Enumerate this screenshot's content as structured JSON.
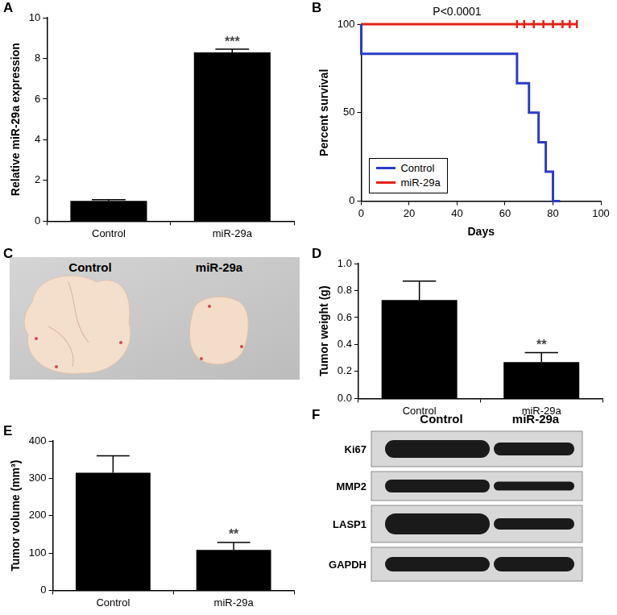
{
  "chart_data": [
    {
      "panel": "A",
      "type": "bar",
      "categories": [
        "Control",
        "miR-29a"
      ],
      "values": [
        1.0,
        8.3
      ],
      "errors": [
        0.06,
        0.15
      ],
      "ylabel": "Relative miR-29a expression",
      "ylim": [
        0,
        10
      ],
      "yticks": [
        0,
        2,
        4,
        6,
        8,
        10
      ],
      "annotations": [
        {
          "category": "miR-29a",
          "text": "***"
        }
      ],
      "color": "#000000",
      "grid": false
    },
    {
      "panel": "B",
      "type": "line",
      "xlabel": "Days",
      "ylabel": "Percent survival",
      "xlim": [
        0,
        100
      ],
      "xticks": [
        0,
        20,
        40,
        60,
        80,
        100
      ],
      "ylim": [
        0,
        100
      ],
      "yticks": [
        0,
        50,
        100
      ],
      "series": [
        {
          "name": "Control",
          "color": "#2b3cc6",
          "x": [
            0,
            65,
            70,
            74,
            77,
            80,
            83
          ],
          "values": [
            100,
            83.3,
            66.7,
            50,
            33.3,
            16.7,
            0
          ]
        },
        {
          "name": "miR-29a",
          "color": "#e3201b",
          "x": [
            0,
            90
          ],
          "values": [
            100,
            100
          ],
          "censored_x": [
            65,
            68,
            72,
            76,
            80,
            84,
            87,
            90
          ],
          "censored_values": [
            100,
            100,
            100,
            100,
            100,
            100,
            100,
            100
          ]
        }
      ],
      "annotation": "P<0.0001",
      "legend": "lower left",
      "grid": false
    },
    {
      "panel": "D",
      "type": "bar",
      "categories": [
        "Control",
        "miR-29a"
      ],
      "values": [
        0.73,
        0.27
      ],
      "errors": [
        0.14,
        0.07
      ],
      "ylabel": "Tumor weight (g)",
      "ylim": [
        0,
        1.0
      ],
      "yticks": [
        {
          "value": 0,
          "label": "0.0"
        },
        0.2,
        0.4,
        0.6,
        0.8,
        {
          "value": 1.0,
          "label": "1.0"
        }
      ],
      "annotations": [
        {
          "category": "miR-29a",
          "text": "**"
        }
      ],
      "color": "#000000",
      "grid": false
    },
    {
      "panel": "E",
      "type": "bar",
      "categories": [
        "Control",
        "miR-29a"
      ],
      "values": [
        315,
        108
      ],
      "errors": [
        45,
        20
      ],
      "ylabel": "Tumor volume (mm³)",
      "ylim": [
        0,
        400
      ],
      "yticks": [
        0,
        100,
        200,
        300,
        400
      ],
      "annotations": [
        {
          "category": "miR-29a",
          "text": "**"
        }
      ],
      "color": "#000000",
      "grid": false
    }
  ],
  "photo": {
    "panel": "C",
    "labels": [
      "Control",
      "miR-29a"
    ]
  },
  "blot": {
    "panel": "F",
    "columns": [
      "Control",
      "miR-29a"
    ],
    "rows": [
      "Ki67",
      "MMP2",
      "LASP1",
      "GAPDH"
    ]
  }
}
